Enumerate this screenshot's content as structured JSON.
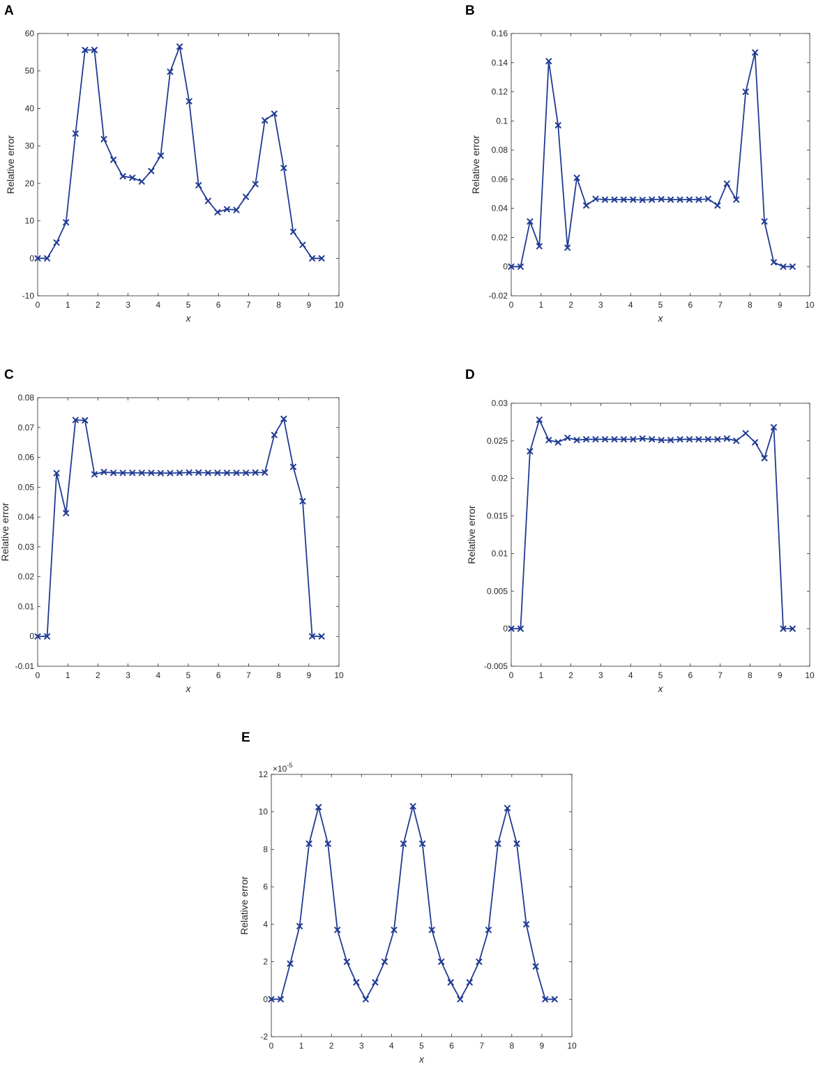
{
  "colors": {
    "series": "#1f3a93",
    "axes": "#262626"
  },
  "chart_data": [
    {
      "panel": "A",
      "type": "line",
      "marker": "x",
      "xlabel": "x",
      "ylabel": "Relative error",
      "xlim": [
        0,
        10
      ],
      "ylim": [
        -10,
        60
      ],
      "xticks": [
        0,
        1,
        2,
        3,
        4,
        5,
        6,
        7,
        8,
        9,
        10
      ],
      "yticks": [
        -10,
        0,
        10,
        20,
        30,
        40,
        50,
        60
      ],
      "ytick_labels": [
        "-10",
        "0",
        "10",
        "20",
        "30",
        "40",
        "50",
        "60"
      ],
      "series": [
        {
          "x": [
            0,
            0.314,
            0.628,
            0.942,
            1.257,
            1.571,
            1.885,
            2.199,
            2.513,
            2.827,
            3.142,
            3.456,
            3.77,
            4.084,
            4.398,
            4.712,
            5.027,
            5.341,
            5.655,
            5.969,
            6.283,
            6.597,
            6.912,
            7.226,
            7.54,
            7.854,
            8.168,
            8.482,
            8.796,
            9.111,
            9.425
          ],
          "y": [
            0,
            0,
            4.2,
            9.6,
            33.3,
            55.6,
            55.6,
            31.8,
            26.3,
            21.9,
            21.5,
            20.5,
            23.3,
            27.4,
            49.8,
            56.5,
            41.9,
            19.5,
            15.3,
            12.3,
            13.1,
            12.9,
            16.4,
            19.8,
            36.8,
            38.6,
            24.1,
            7.1,
            3.6,
            0,
            0
          ]
        }
      ]
    },
    {
      "panel": "B",
      "type": "line",
      "marker": "x",
      "xlabel": "x",
      "ylabel": "Relative error",
      "xlim": [
        0,
        10
      ],
      "ylim": [
        -0.02,
        0.16
      ],
      "xticks": [
        0,
        1,
        2,
        3,
        4,
        5,
        6,
        7,
        8,
        9,
        10
      ],
      "yticks": [
        -0.02,
        0,
        0.02,
        0.04,
        0.06,
        0.08,
        0.1,
        0.12,
        0.14,
        0.16
      ],
      "ytick_labels": [
        "-0.02",
        "0",
        "0.02",
        "0.04",
        "0.06",
        "0.08",
        "0.1",
        "0.12",
        "0.14",
        "0.16"
      ],
      "series": [
        {
          "x": [
            0,
            0.314,
            0.628,
            0.942,
            1.257,
            1.571,
            1.885,
            2.199,
            2.513,
            2.827,
            3.142,
            3.456,
            3.77,
            4.084,
            4.398,
            4.712,
            5.027,
            5.341,
            5.655,
            5.969,
            6.283,
            6.597,
            6.912,
            7.226,
            7.54,
            7.854,
            8.168,
            8.482,
            8.796,
            9.111,
            9.425
          ],
          "y": [
            0,
            0,
            0.031,
            0.014,
            0.141,
            0.097,
            0.013,
            0.061,
            0.042,
            0.0465,
            0.046,
            0.046,
            0.046,
            0.046,
            0.0458,
            0.046,
            0.0463,
            0.046,
            0.046,
            0.046,
            0.046,
            0.0465,
            0.042,
            0.057,
            0.046,
            0.12,
            0.147,
            0.031,
            0.003,
            0,
            0
          ]
        }
      ]
    },
    {
      "panel": "C",
      "type": "line",
      "marker": "x",
      "xlabel": "x",
      "ylabel": "Relative error",
      "xlim": [
        0,
        10
      ],
      "ylim": [
        -0.01,
        0.08
      ],
      "xticks": [
        0,
        1,
        2,
        3,
        4,
        5,
        6,
        7,
        8,
        9,
        10
      ],
      "yticks": [
        -0.01,
        0,
        0.01,
        0.02,
        0.03,
        0.04,
        0.05,
        0.06,
        0.07,
        0.08
      ],
      "ytick_labels": [
        "-0.01",
        "0",
        "0.01",
        "0.02",
        "0.03",
        "0.04",
        "0.05",
        "0.06",
        "0.07",
        "0.08"
      ],
      "series": [
        {
          "x": [
            0,
            0.314,
            0.628,
            0.942,
            1.257,
            1.571,
            1.885,
            2.199,
            2.513,
            2.827,
            3.142,
            3.456,
            3.77,
            4.084,
            4.398,
            4.712,
            5.027,
            5.341,
            5.655,
            5.969,
            6.283,
            6.597,
            6.912,
            7.226,
            7.54,
            7.854,
            8.168,
            8.482,
            8.796,
            9.111,
            9.425
          ],
          "y": [
            0,
            0,
            0.0547,
            0.0413,
            0.0725,
            0.0724,
            0.0543,
            0.0551,
            0.0548,
            0.0548,
            0.0548,
            0.0548,
            0.0548,
            0.0547,
            0.0547,
            0.0548,
            0.0549,
            0.0549,
            0.0548,
            0.0548,
            0.0548,
            0.0548,
            0.0548,
            0.0549,
            0.0549,
            0.0675,
            0.0729,
            0.0568,
            0.0453,
            0,
            0
          ]
        }
      ]
    },
    {
      "panel": "D",
      "type": "line",
      "marker": "x",
      "xlabel": "x",
      "ylabel": "Relative error",
      "xlim": [
        0,
        10
      ],
      "ylim": [
        -0.005,
        0.03
      ],
      "xticks": [
        0,
        1,
        2,
        3,
        4,
        5,
        6,
        7,
        8,
        9,
        10
      ],
      "yticks": [
        -0.005,
        0,
        0.005,
        0.01,
        0.015,
        0.02,
        0.025,
        0.03
      ],
      "ytick_labels": [
        "-0.005",
        "0",
        "0.005",
        "0.01",
        "0.015",
        "0.02",
        "0.025",
        "0.03"
      ],
      "series": [
        {
          "x": [
            0,
            0.314,
            0.628,
            0.942,
            1.257,
            1.571,
            1.885,
            2.199,
            2.513,
            2.827,
            3.142,
            3.456,
            3.77,
            4.084,
            4.398,
            4.712,
            5.027,
            5.341,
            5.655,
            5.969,
            6.283,
            6.597,
            6.912,
            7.226,
            7.54,
            7.854,
            8.168,
            8.482,
            8.796,
            9.111,
            9.425
          ],
          "y": [
            0,
            0,
            0.0236,
            0.0278,
            0.0251,
            0.0248,
            0.0254,
            0.0251,
            0.0252,
            0.0252,
            0.0252,
            0.0252,
            0.0252,
            0.0252,
            0.0253,
            0.0252,
            0.0251,
            0.0251,
            0.0252,
            0.0252,
            0.0252,
            0.0252,
            0.0252,
            0.0253,
            0.025,
            0.026,
            0.0248,
            0.0227,
            0.0268,
            0,
            0
          ]
        }
      ]
    },
    {
      "panel": "E",
      "type": "line",
      "marker": "x",
      "xlabel": "x",
      "ylabel": "Relative error",
      "exponent_base": "×10",
      "exponent_power": "-5",
      "xlim": [
        0,
        10
      ],
      "ylim": [
        -2,
        12
      ],
      "xticks": [
        0,
        1,
        2,
        3,
        4,
        5,
        6,
        7,
        8,
        9,
        10
      ],
      "yticks": [
        -2,
        0,
        2,
        4,
        6,
        8,
        10,
        12
      ],
      "ytick_labels": [
        "-2",
        "0",
        "2",
        "4",
        "6",
        "8",
        "10",
        "12"
      ],
      "series": [
        {
          "x": [
            0,
            0.314,
            0.628,
            0.942,
            1.257,
            1.571,
            1.885,
            2.199,
            2.513,
            2.827,
            3.142,
            3.456,
            3.77,
            4.084,
            4.398,
            4.712,
            5.027,
            5.341,
            5.655,
            5.969,
            6.283,
            6.597,
            6.912,
            7.226,
            7.54,
            7.854,
            8.168,
            8.482,
            8.796,
            9.111,
            9.425
          ],
          "y": [
            0,
            0,
            1.9,
            3.9,
            8.3,
            10.25,
            8.3,
            3.7,
            2.0,
            0.9,
            0,
            0.9,
            2.0,
            3.7,
            8.3,
            10.3,
            8.3,
            3.7,
            2.0,
            0.9,
            0,
            0.9,
            2.0,
            3.7,
            8.3,
            10.2,
            8.3,
            4.0,
            1.75,
            0,
            0
          ]
        }
      ]
    }
  ]
}
